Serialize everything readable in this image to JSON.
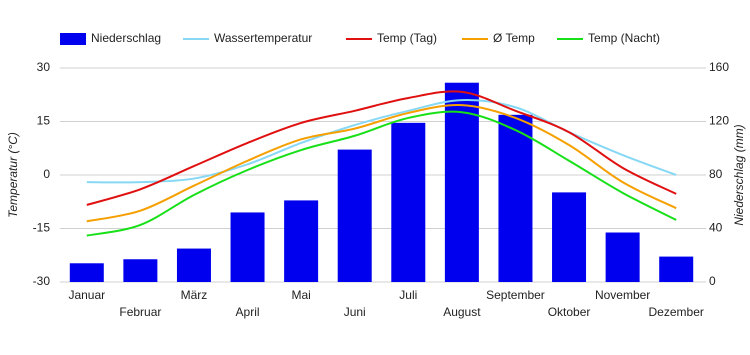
{
  "chart_data": {
    "type": "bar-line",
    "categories": [
      "Januar",
      "Februar",
      "März",
      "April",
      "Mai",
      "Juni",
      "Juli",
      "August",
      "September",
      "Oktober",
      "November",
      "Dezember"
    ],
    "y_label": "Temperatur (°C)",
    "y2_label": "Niederschlag (mm)",
    "ylim": [
      -30,
      30
    ],
    "yticks": [
      -30,
      -15,
      0,
      15,
      30
    ],
    "y2lim": [
      0,
      160
    ],
    "y2ticks": [
      0,
      40,
      80,
      120,
      160
    ],
    "grid": true,
    "series": [
      {
        "name": "Niederschlag",
        "type": "bar",
        "axis": "y2",
        "color": "#0000ee",
        "values": [
          14,
          17,
          25,
          52,
          61,
          99,
          119,
          149,
          125,
          67,
          37,
          19
        ]
      },
      {
        "name": "Wassertemperatur",
        "type": "line",
        "color": "#87d8f5",
        "values": [
          -2,
          -2,
          -1,
          3,
          9,
          14,
          18,
          21,
          19,
          12,
          5.6,
          0
        ]
      },
      {
        "name": "Temp (Tag)",
        "type": "line",
        "color": "#e01010",
        "values": [
          -8.4,
          -4,
          2.5,
          9,
          14.6,
          18,
          21.6,
          23.3,
          18,
          12,
          2,
          -5.3
        ]
      },
      {
        "name": "Ø Temp",
        "type": "line",
        "color": "#f5a000",
        "values": [
          -13,
          -10,
          -3,
          4,
          10,
          13,
          17.4,
          19.6,
          16,
          8.4,
          -2,
          -9.3
        ]
      },
      {
        "name": "Temp (Nacht)",
        "type": "line",
        "color": "#18e018",
        "values": [
          -17,
          -14,
          -5.6,
          1.4,
          7,
          11,
          16,
          17.6,
          12.6,
          4,
          -5,
          -12.6
        ]
      }
    ]
  }
}
